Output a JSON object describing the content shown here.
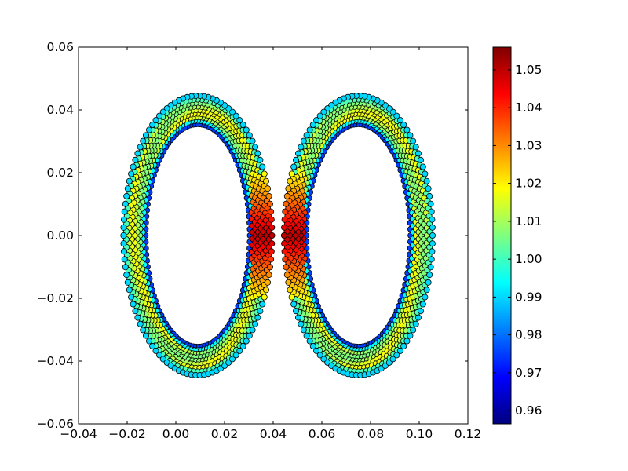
{
  "chart_data": {
    "type": "scatter",
    "title": "",
    "xlabel": "",
    "ylabel": "",
    "xlim": [
      -0.04,
      0.12
    ],
    "ylim": [
      -0.06,
      0.06
    ],
    "x_ticks": [
      -0.04,
      -0.02,
      0.0,
      0.02,
      0.04,
      0.06,
      0.08,
      0.1,
      0.12
    ],
    "x_tick_labels": [
      "−0.04",
      "−0.02",
      "0.00",
      "0.02",
      "0.04",
      "0.06",
      "0.08",
      "0.10",
      "0.12"
    ],
    "y_ticks": [
      0.06,
      0.04,
      0.02,
      0.0,
      -0.02,
      -0.04,
      -0.06
    ],
    "y_tick_labels": [
      "0.06",
      "0.04",
      "0.02",
      "0.00",
      "−0.02",
      "−0.04",
      "−0.06"
    ],
    "grid": false,
    "legend": "none",
    "colormap": "jet",
    "colormap_stops": [
      "#00007f",
      "#0000ff",
      "#007fff",
      "#00ffff",
      "#7fff7f",
      "#ffff00",
      "#ff7f00",
      "#ff0000",
      "#7f0000"
    ],
    "marker_edge_color": "#000000",
    "colorbar": {
      "range": [
        0.9565,
        1.056
      ],
      "ticks": [
        0.96,
        0.97,
        0.98,
        0.99,
        1.0,
        1.01,
        1.02,
        1.03,
        1.04,
        1.05
      ],
      "tick_labels": [
        "0.96",
        "0.97",
        "0.98",
        "0.99",
        "1.00",
        "1.01",
        "1.02",
        "1.03",
        "1.04",
        "1.05"
      ]
    },
    "rings": [
      {
        "center": [
          0.009,
          0.0
        ],
        "inner_radius": [
          0.0215,
          0.0355
        ],
        "outer_radius": [
          0.0305,
          0.0445
        ],
        "c_inner": 0.975,
        "c_outer": 0.99,
        "c_mid": 1.012
      },
      {
        "center": [
          0.075,
          0.0
        ],
        "inner_radius": [
          0.0215,
          0.0355
        ],
        "outer_radius": [
          0.0305,
          0.0445
        ],
        "c_inner": 0.975,
        "c_outer": 0.99,
        "c_mid": 1.012
      }
    ],
    "overlap_region": {
      "x_range": [
        0.031,
        0.053
      ],
      "c_peak": 1.05
    }
  }
}
